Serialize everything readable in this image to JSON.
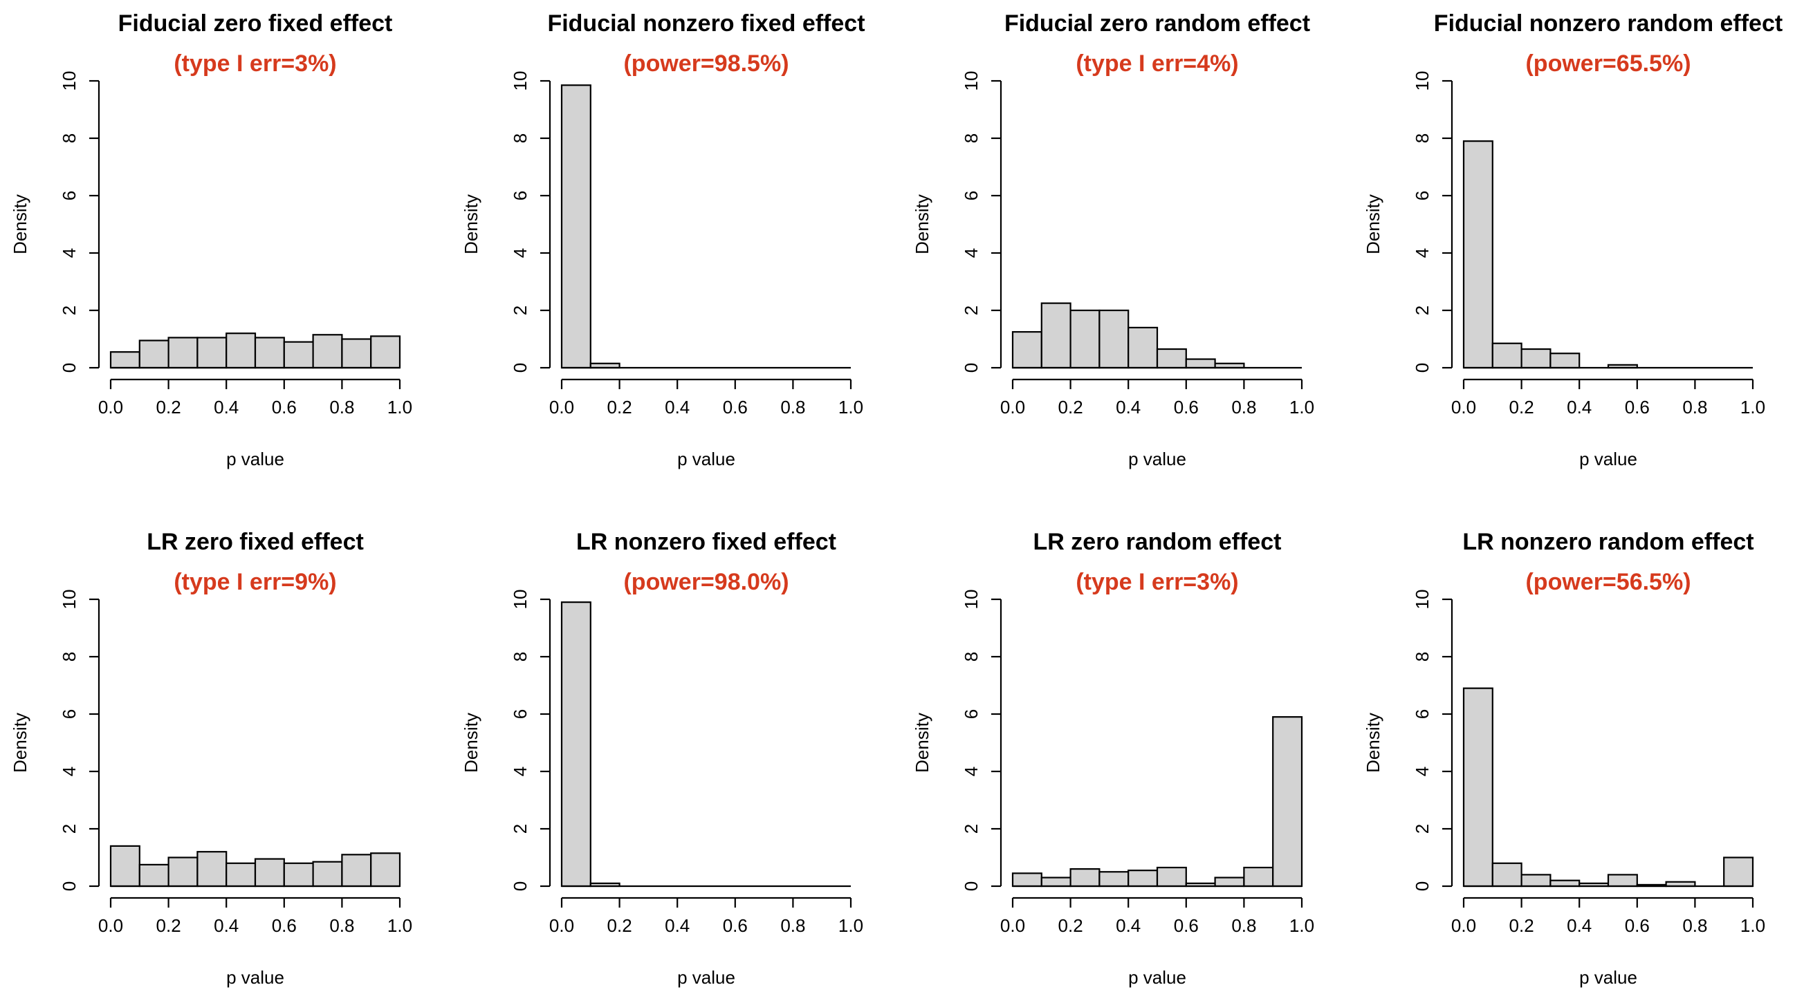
{
  "colors": {
    "bar_fill": "#d3d3d3",
    "bar_stroke": "#000000",
    "annotation": "#d63a1d"
  },
  "chart_data": [
    {
      "type": "histogram",
      "title": "Fiducial zero fixed effect",
      "annotation": "(type I err=3%)",
      "xlabel": "p value",
      "ylabel": "Density",
      "xlim": [
        0,
        1
      ],
      "ylim": [
        0,
        10
      ],
      "xticks": [
        "0.0",
        "0.2",
        "0.4",
        "0.6",
        "0.8",
        "1.0"
      ],
      "yticks": [
        "0",
        "2",
        "4",
        "6",
        "8",
        "10"
      ],
      "bin_edges": [
        0,
        0.1,
        0.2,
        0.3,
        0.4,
        0.5,
        0.6,
        0.7,
        0.8,
        0.9,
        1.0
      ],
      "values": [
        0.55,
        0.95,
        1.05,
        1.05,
        1.2,
        1.05,
        0.9,
        1.15,
        1.0,
        1.1
      ]
    },
    {
      "type": "histogram",
      "title": "Fiducial nonzero fixed effect",
      "annotation": "(power=98.5%)",
      "xlabel": "p value",
      "ylabel": "Density",
      "xlim": [
        0,
        1
      ],
      "ylim": [
        0,
        10
      ],
      "xticks": [
        "0.0",
        "0.2",
        "0.4",
        "0.6",
        "0.8",
        "1.0"
      ],
      "yticks": [
        "0",
        "2",
        "4",
        "6",
        "8",
        "10"
      ],
      "bin_edges": [
        0,
        0.1,
        0.2,
        0.3,
        0.4,
        0.5,
        0.6,
        0.7,
        0.8,
        0.9,
        1.0
      ],
      "values": [
        9.85,
        0.15,
        0,
        0,
        0,
        0,
        0,
        0,
        0,
        0
      ]
    },
    {
      "type": "histogram",
      "title": "Fiducial zero random effect",
      "annotation": "(type I err=4%)",
      "xlabel": "p value",
      "ylabel": "Density",
      "xlim": [
        0,
        1
      ],
      "ylim": [
        0,
        10
      ],
      "xticks": [
        "0.0",
        "0.2",
        "0.4",
        "0.6",
        "0.8",
        "1.0"
      ],
      "yticks": [
        "0",
        "2",
        "4",
        "6",
        "8",
        "10"
      ],
      "bin_edges": [
        0,
        0.1,
        0.2,
        0.3,
        0.4,
        0.5,
        0.6,
        0.7,
        0.8,
        0.9,
        1.0
      ],
      "values": [
        1.25,
        2.25,
        2.0,
        2.0,
        1.4,
        0.65,
        0.3,
        0.15,
        0,
        0
      ]
    },
    {
      "type": "histogram",
      "title": "Fiducial nonzero random effect",
      "annotation": "(power=65.5%)",
      "xlabel": "p value",
      "ylabel": "Density",
      "xlim": [
        0,
        1
      ],
      "ylim": [
        0,
        10
      ],
      "xticks": [
        "0.0",
        "0.2",
        "0.4",
        "0.6",
        "0.8",
        "1.0"
      ],
      "yticks": [
        "0",
        "2",
        "4",
        "6",
        "8",
        "10"
      ],
      "bin_edges": [
        0,
        0.1,
        0.2,
        0.3,
        0.4,
        0.5,
        0.6,
        0.7,
        0.8,
        0.9,
        1.0
      ],
      "values": [
        7.9,
        0.85,
        0.65,
        0.5,
        0,
        0.1,
        0,
        0,
        0,
        0
      ]
    },
    {
      "type": "histogram",
      "title": "LR zero fixed effect",
      "annotation": "(type I err=9%)",
      "xlabel": "p value",
      "ylabel": "Density",
      "xlim": [
        0,
        1
      ],
      "ylim": [
        0,
        10
      ],
      "xticks": [
        "0.0",
        "0.2",
        "0.4",
        "0.6",
        "0.8",
        "1.0"
      ],
      "yticks": [
        "0",
        "2",
        "4",
        "6",
        "8",
        "10"
      ],
      "bin_edges": [
        0,
        0.1,
        0.2,
        0.3,
        0.4,
        0.5,
        0.6,
        0.7,
        0.8,
        0.9,
        1.0
      ],
      "values": [
        1.4,
        0.75,
        1.0,
        1.2,
        0.8,
        0.95,
        0.8,
        0.85,
        1.1,
        1.15
      ]
    },
    {
      "type": "histogram",
      "title": "LR nonzero fixed effect",
      "annotation": "(power=98.0%)",
      "xlabel": "p value",
      "ylabel": "Density",
      "xlim": [
        0,
        1
      ],
      "ylim": [
        0,
        10
      ],
      "xticks": [
        "0.0",
        "0.2",
        "0.4",
        "0.6",
        "0.8",
        "1.0"
      ],
      "yticks": [
        "0",
        "2",
        "4",
        "6",
        "8",
        "10"
      ],
      "bin_edges": [
        0,
        0.1,
        0.2,
        0.3,
        0.4,
        0.5,
        0.6,
        0.7,
        0.8,
        0.9,
        1.0
      ],
      "values": [
        9.9,
        0.1,
        0,
        0,
        0,
        0,
        0,
        0,
        0,
        0
      ]
    },
    {
      "type": "histogram",
      "title": "LR zero random effect",
      "annotation": "(type I err=3%)",
      "xlabel": "p value",
      "ylabel": "Density",
      "xlim": [
        0,
        1
      ],
      "ylim": [
        0,
        10
      ],
      "xticks": [
        "0.0",
        "0.2",
        "0.4",
        "0.6",
        "0.8",
        "1.0"
      ],
      "yticks": [
        "0",
        "2",
        "4",
        "6",
        "8",
        "10"
      ],
      "bin_edges": [
        0,
        0.1,
        0.2,
        0.3,
        0.4,
        0.5,
        0.6,
        0.7,
        0.8,
        0.9,
        1.0
      ],
      "values": [
        0.45,
        0.3,
        0.6,
        0.5,
        0.55,
        0.65,
        0.1,
        0.3,
        0.65,
        5.9
      ]
    },
    {
      "type": "histogram",
      "title": "LR nonzero random effect",
      "annotation": "(power=56.5%)",
      "xlabel": "p value",
      "ylabel": "Density",
      "xlim": [
        0,
        1
      ],
      "ylim": [
        0,
        10
      ],
      "xticks": [
        "0.0",
        "0.2",
        "0.4",
        "0.6",
        "0.8",
        "1.0"
      ],
      "yticks": [
        "0",
        "2",
        "4",
        "6",
        "8",
        "10"
      ],
      "bin_edges": [
        0,
        0.1,
        0.2,
        0.3,
        0.4,
        0.5,
        0.6,
        0.7,
        0.8,
        0.9,
        1.0
      ],
      "values": [
        6.9,
        0.8,
        0.4,
        0.2,
        0.1,
        0.4,
        0.05,
        0.15,
        0,
        1.0
      ]
    }
  ]
}
